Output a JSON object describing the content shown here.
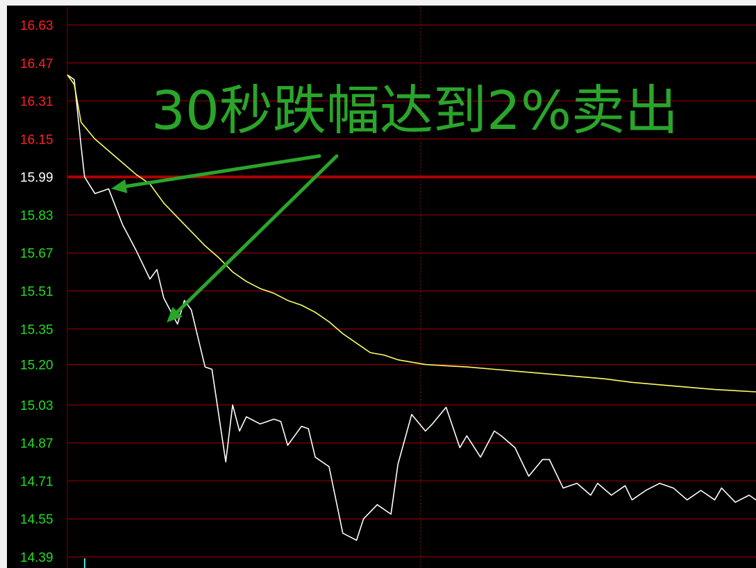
{
  "chart_data": {
    "type": "line",
    "title": "",
    "annotation": "30秒跌幅达到2%卖出",
    "reference_price": 15.99,
    "ylim": [
      14.39,
      16.63
    ],
    "y_ticks": [
      {
        "label": "16.63",
        "value": 16.63
      },
      {
        "label": "16.47",
        "value": 16.47
      },
      {
        "label": "16.31",
        "value": 16.31
      },
      {
        "label": "16.15",
        "value": 16.15
      },
      {
        "label": "15.99",
        "value": 15.99
      },
      {
        "label": "15.83",
        "value": 15.83
      },
      {
        "label": "15.67",
        "value": 15.67
      },
      {
        "label": "15.51",
        "value": 15.51
      },
      {
        "label": "15.35",
        "value": 15.35
      },
      {
        "label": "15.20",
        "value": 15.2
      },
      {
        "label": "15.03",
        "value": 15.03
      },
      {
        "label": "14.87",
        "value": 14.87
      },
      {
        "label": "14.71",
        "value": 14.71
      },
      {
        "label": "14.55",
        "value": 14.55
      },
      {
        "label": "14.39",
        "value": 14.39
      }
    ],
    "x_range": [
      0,
      100
    ],
    "series": [
      {
        "color": "#ffffff",
        "x": [
          0,
          1,
          2,
          2.5,
          4,
          5,
          6,
          8,
          10,
          12,
          13,
          14,
          16,
          17,
          18,
          20,
          21,
          23,
          24,
          25,
          26,
          28,
          30,
          31,
          32,
          34,
          35,
          36,
          38,
          40,
          42,
          43,
          45,
          47,
          48,
          50,
          52,
          53,
          55,
          57,
          58,
          60,
          62,
          63,
          65,
          67,
          69,
          70,
          72,
          74,
          76,
          77,
          79,
          81,
          82,
          84,
          86,
          88,
          90,
          92,
          94,
          95,
          97,
          99,
          100
        ],
        "y": [
          16.42,
          16.4,
          16.12,
          15.99,
          15.92,
          15.93,
          15.94,
          15.79,
          15.68,
          15.56,
          15.6,
          15.48,
          15.37,
          15.47,
          15.43,
          15.19,
          15.18,
          14.79,
          15.03,
          14.92,
          14.98,
          14.95,
          14.97,
          14.96,
          14.86,
          14.94,
          14.93,
          14.81,
          14.77,
          14.49,
          14.46,
          14.55,
          14.61,
          14.57,
          14.78,
          14.99,
          14.92,
          14.95,
          15.02,
          14.85,
          14.9,
          14.81,
          14.92,
          14.9,
          14.85,
          14.73,
          14.8,
          14.8,
          14.68,
          14.7,
          14.65,
          14.7,
          14.65,
          14.69,
          14.63,
          14.67,
          14.7,
          14.68,
          14.63,
          14.67,
          14.63,
          14.68,
          14.62,
          14.65,
          14.63
        ]
      },
      {
        "color": "#ffff66",
        "x": [
          0,
          1,
          2,
          4,
          6,
          8,
          10,
          12,
          14,
          16,
          18,
          20,
          22,
          24,
          26,
          28,
          30,
          32,
          34,
          36,
          38,
          40,
          42,
          44,
          46,
          48,
          50,
          52,
          55,
          58,
          62,
          66,
          70,
          74,
          78,
          82,
          86,
          90,
          94,
          97,
          100
        ],
        "y": [
          16.42,
          16.38,
          16.22,
          16.15,
          16.1,
          16.05,
          16.0,
          15.96,
          15.88,
          15.82,
          15.76,
          15.7,
          15.65,
          15.59,
          15.55,
          15.52,
          15.5,
          15.47,
          15.45,
          15.42,
          15.38,
          15.33,
          15.29,
          15.25,
          15.24,
          15.22,
          15.21,
          15.2,
          15.195,
          15.19,
          15.18,
          15.17,
          15.16,
          15.15,
          15.14,
          15.125,
          15.115,
          15.105,
          15.095,
          15.09,
          15.085
        ]
      }
    ],
    "grid": true
  },
  "colors": {
    "background": "#000000",
    "grid": "#8b0000",
    "reference_line": "#b00000",
    "tick_above": "#ff2020",
    "tick_ref": "#ffffff",
    "tick_below": "#22dd22",
    "arrow": "#2aa52a",
    "annotation": "#2aa52a",
    "vertical_divider": "#8b1a1a"
  }
}
